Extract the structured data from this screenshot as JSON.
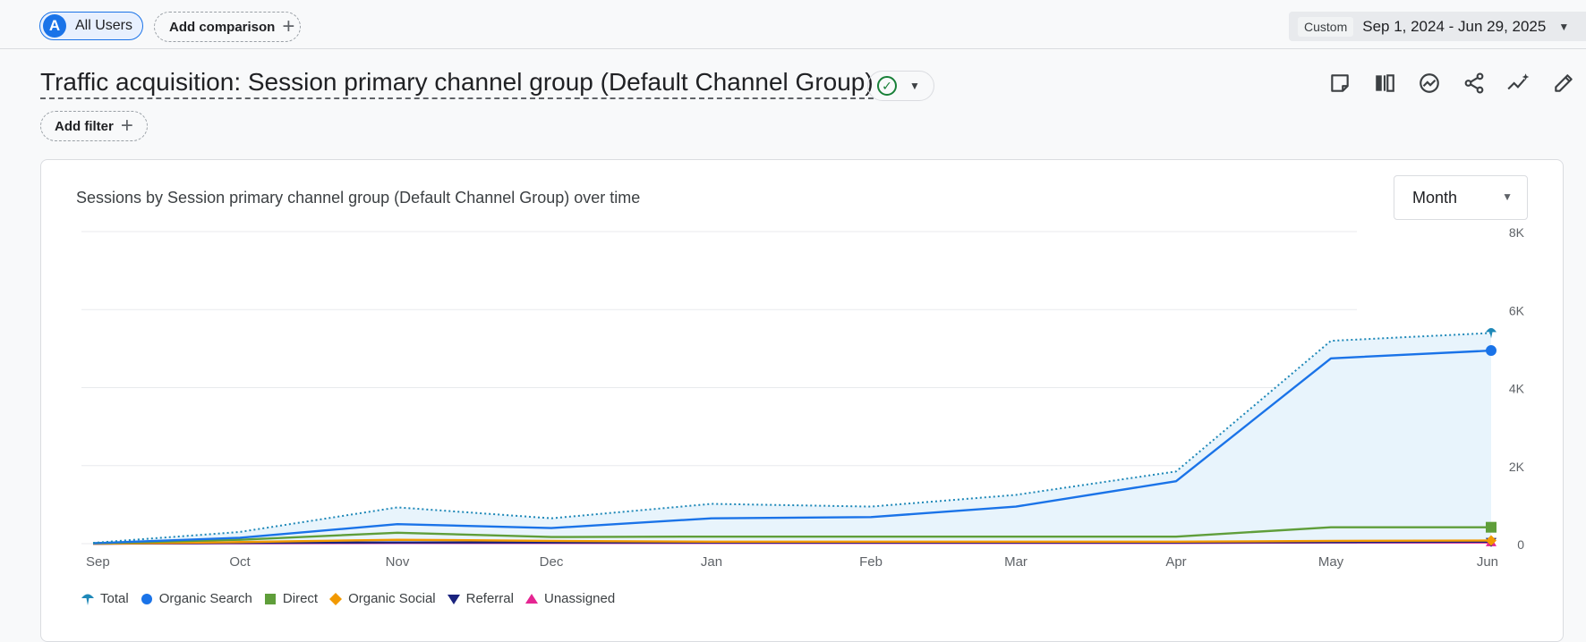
{
  "header": {
    "segment_avatar": "A",
    "segment_label": "All Users",
    "add_comparison_label": "Add comparison",
    "date_custom_label": "Custom",
    "date_range": "Sep 1, 2024 - Jun 29, 2025"
  },
  "report": {
    "title": "Traffic acquisition: Session primary channel group (Default Channel Group)",
    "add_filter_label": "Add filter",
    "toolbar_icons": [
      "note-icon",
      "compare-columns-icon",
      "insights-icon",
      "share-icon",
      "sparkle-icon",
      "edit-icon"
    ]
  },
  "card": {
    "title": "Sessions by Session primary channel group (Default Channel Group) over time",
    "granularity": "Month"
  },
  "chart_data": {
    "type": "line",
    "x": [
      "Sep",
      "Oct",
      "Nov",
      "Dec",
      "Jan",
      "Feb",
      "Mar",
      "Apr",
      "May",
      "Jun"
    ],
    "yticks": [
      "0",
      "2K",
      "4K",
      "6K",
      "8K"
    ],
    "ylim": [
      0,
      8000
    ],
    "grid": true,
    "legend_position": "bottom-left",
    "series": [
      {
        "name": "Total",
        "color": "#1e88b8",
        "style": "dotted",
        "marker": "pin",
        "area": true,
        "values": [
          20,
          300,
          930,
          650,
          1020,
          950,
          1250,
          1850,
          5200,
          5400
        ]
      },
      {
        "name": "Organic Search",
        "color": "#1a73e8",
        "style": "solid",
        "marker": "circle",
        "values": [
          10,
          150,
          500,
          400,
          650,
          680,
          950,
          1600,
          4750,
          4950
        ]
      },
      {
        "name": "Direct",
        "color": "#5f9e3a",
        "style": "solid",
        "marker": "square",
        "values": [
          10,
          100,
          280,
          170,
          180,
          180,
          180,
          180,
          420,
          420
        ]
      },
      {
        "name": "Organic Social",
        "color": "#f29900",
        "style": "solid",
        "marker": "diamond",
        "values": [
          0,
          40,
          100,
          70,
          50,
          50,
          50,
          50,
          70,
          80
        ]
      },
      {
        "name": "Referral",
        "color": "#1a237e",
        "style": "solid",
        "marker": "triangle-down",
        "values": [
          0,
          20,
          30,
          30,
          30,
          30,
          30,
          30,
          40,
          50
        ]
      },
      {
        "name": "Unassigned",
        "color": "#e52592",
        "style": "solid",
        "marker": "triangle-up",
        "values": [
          0,
          10,
          20,
          20,
          20,
          20,
          20,
          20,
          30,
          30
        ]
      }
    ]
  }
}
